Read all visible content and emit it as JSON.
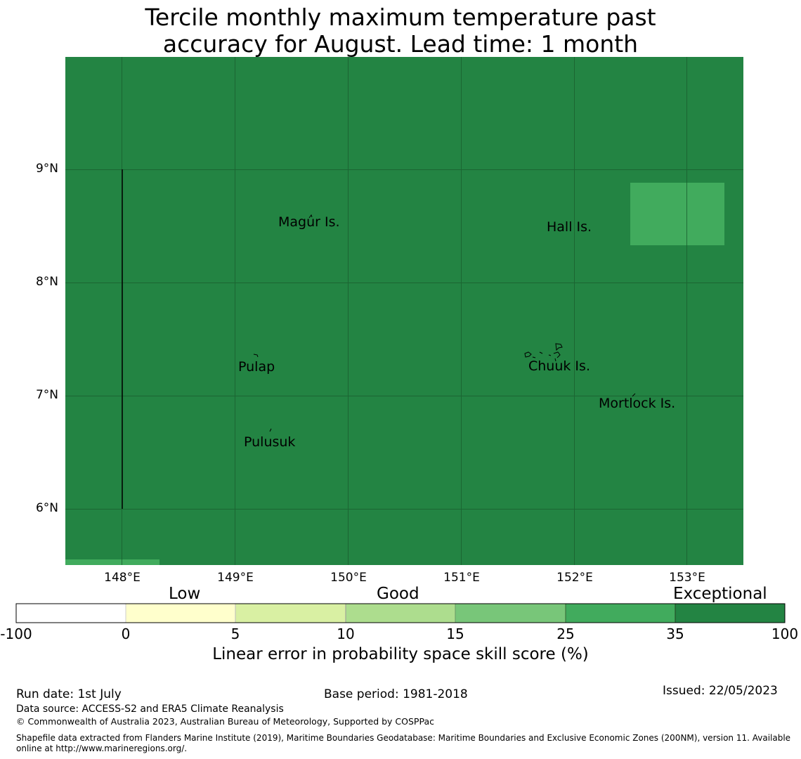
{
  "title": {
    "line1": "Tercile monthly maximum temperature past",
    "line2": "accuracy for August. Lead time: 1 month"
  },
  "map": {
    "lon_range": [
      147.5,
      153.5
    ],
    "lat_range": [
      5.5,
      10.0
    ],
    "longitude_ticks": [
      "148°E",
      "149°E",
      "150°E",
      "151°E",
      "152°E",
      "153°E"
    ],
    "latitude_ticks": [
      "9°N",
      "8°N",
      "7°N",
      "6°N"
    ],
    "fill_color": "#238443",
    "places": [
      {
        "name": "Magur Is.",
        "lon": 149.6,
        "lat": 8.5
      },
      {
        "name": "Hall Is.",
        "lon": 151.8,
        "lat": 8.45
      },
      {
        "name": "Pulap",
        "lon": 149.2,
        "lat": 7.2
      },
      {
        "name": "Chuuk Is.",
        "lon": 151.8,
        "lat": 7.25
      },
      {
        "name": "Mortlock Is.",
        "lon": 152.6,
        "lat": 6.9
      },
      {
        "name": "Pulusuk",
        "lon": 149.3,
        "lat": 6.55
      }
    ]
  },
  "colorbar": {
    "categories": [
      "Low",
      "Good",
      "Exceptional"
    ],
    "ticks": [
      "-100",
      "0",
      "5",
      "10",
      "15",
      "25",
      "35",
      "100"
    ],
    "colors": [
      "#ffffff",
      "#ffffcc",
      "#d9f0a3",
      "#addd8e",
      "#78c679",
      "#41ab5d",
      "#238443"
    ],
    "label": "Linear error in probability space skill score (%)"
  },
  "footer": {
    "run_date": "Run date: 1st July",
    "base_period": "Base period: 1981-2018",
    "issued": "Issued: 22/05/2023",
    "data_source": "Data source: ACCESS-S2 and ERA5 Climate Reanalysis",
    "copyright": "© Commonwealth of Australia 2023, Australian Bureau of Meteorology, Supported by COSPPac",
    "shapefile_line1": "Shapefile data extracted from Flanders Marine Institute (2019), Maritime Boundaries Geodatabase: Maritime Boundaries and Exclusive Economic Zones (200NM), version 11. Available",
    "shapefile_line2": "online at http://www.marineregions.org/."
  }
}
